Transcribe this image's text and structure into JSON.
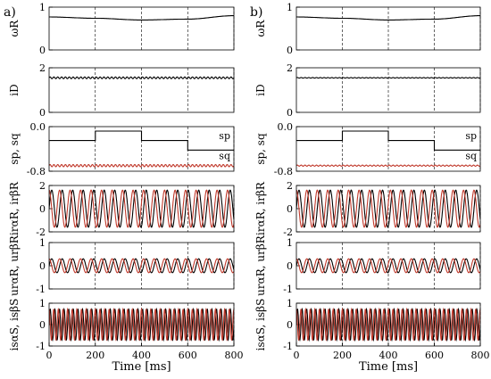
{
  "figure": {
    "panel_labels": [
      "a)",
      "b)"
    ],
    "xlabel": "Time [ms]",
    "x_ticks": [
      "0",
      "200",
      "400",
      "600",
      "800"
    ]
  },
  "colors": {
    "black": "#000000",
    "red": "#c0392b"
  },
  "chart_data": [
    {
      "type": "line",
      "panel": "a)",
      "x_range": [
        0,
        800
      ],
      "vlines": [
        200,
        400,
        600,
        800
      ],
      "rows": [
        {
          "ylabel": "ωR",
          "ylim": [
            0,
            1
          ],
          "yticks": [
            "0",
            "1"
          ],
          "series": [
            {
              "color": "#000000",
              "shape": "smooth",
              "points": [
                [
                  0,
                  0.77
                ],
                [
                  200,
                  0.74
                ],
                [
                  400,
                  0.7
                ],
                [
                  600,
                  0.72
                ],
                [
                  800,
                  0.8
                ]
              ]
            }
          ]
        },
        {
          "ylabel": "iD",
          "ylim": [
            0,
            2
          ],
          "yticks": [
            "0",
            "2"
          ],
          "series": [
            {
              "color": "#000000",
              "shape": "ripple",
              "level": 1.55,
              "amp": 0.04,
              "freq_hz": 60
            }
          ]
        },
        {
          "ylabel": "sp, sq",
          "ylim": [
            -0.8,
            0
          ],
          "yticks": [
            "-0.8",
            "0.0"
          ],
          "annotations": [
            {
              "text": "sp",
              "x": 760,
              "y": -0.22
            },
            {
              "text": "sq",
              "x": 760,
              "y": -0.58
            }
          ],
          "series": [
            {
              "color": "#000000",
              "shape": "steps",
              "steps": [
                [
                  0,
                  -0.25
                ],
                [
                  200,
                  -0.08
                ],
                [
                  400,
                  -0.25
                ],
                [
                  600,
                  -0.42
                ],
                [
                  800,
                  -0.42
                ]
              ]
            },
            {
              "color": "#c0392b",
              "shape": "ripple",
              "level": -0.7,
              "amp": 0.02,
              "freq_hz": 60
            }
          ]
        },
        {
          "ylabel": "irαR, irβR",
          "ylim": [
            -2,
            2
          ],
          "yticks": [
            "-2",
            "0",
            "2"
          ],
          "series": [
            {
              "color": "#000000",
              "shape": "sine",
              "amp": 1.6,
              "freq_hz": 22,
              "phase": 0
            },
            {
              "color": "#c0392b",
              "shape": "sine",
              "amp": 1.6,
              "freq_hz": 22,
              "phase": 1.571
            }
          ]
        },
        {
          "ylabel": "urαR, urβR",
          "ylim": [
            -1,
            1
          ],
          "yticks": [
            "-1",
            "0",
            "1"
          ],
          "series": [
            {
              "color": "#000000",
              "shape": "sine",
              "amp": 0.3,
              "freq_hz": 22,
              "phase": 0
            },
            {
              "color": "#c0392b",
              "shape": "sine",
              "amp": 0.3,
              "freq_hz": 22,
              "phase": 1.571
            }
          ]
        },
        {
          "ylabel": "isαS, isβS",
          "ylim": [
            -1,
            1
          ],
          "yticks": [
            "-1",
            "0",
            "1"
          ],
          "series": [
            {
              "color": "#000000",
              "shape": "sine",
              "amp": 0.72,
              "freq_hz": 50,
              "phase": 0
            },
            {
              "color": "#c0392b",
              "shape": "sine",
              "amp": 0.72,
              "freq_hz": 50,
              "phase": 1.571
            }
          ]
        }
      ]
    },
    {
      "type": "line",
      "panel": "b)",
      "x_range": [
        0,
        800
      ],
      "vlines": [
        200,
        400,
        600,
        800
      ],
      "rows": [
        {
          "ylabel": "ωR",
          "ylim": [
            0,
            1
          ],
          "yticks": [
            "0",
            "1"
          ],
          "series": [
            {
              "color": "#000000",
              "shape": "smooth",
              "points": [
                [
                  0,
                  0.77
                ],
                [
                  200,
                  0.74
                ],
                [
                  400,
                  0.7
                ],
                [
                  600,
                  0.72
                ],
                [
                  800,
                  0.8
                ]
              ]
            }
          ]
        },
        {
          "ylabel": "iD",
          "ylim": [
            0,
            2
          ],
          "yticks": [
            "0",
            "2"
          ],
          "series": [
            {
              "color": "#000000",
              "shape": "ripple",
              "level": 1.55,
              "amp": 0.015,
              "freq_hz": 60
            }
          ]
        },
        {
          "ylabel": "sp, sq",
          "ylim": [
            -0.8,
            0
          ],
          "yticks": [
            "-0.8",
            "0.0"
          ],
          "annotations": [
            {
              "text": "sp",
              "x": 760,
              "y": -0.22
            },
            {
              "text": "sq",
              "x": 760,
              "y": -0.58
            }
          ],
          "series": [
            {
              "color": "#000000",
              "shape": "steps",
              "steps": [
                [
                  0,
                  -0.25
                ],
                [
                  200,
                  -0.08
                ],
                [
                  400,
                  -0.25
                ],
                [
                  600,
                  -0.42
                ],
                [
                  800,
                  -0.42
                ]
              ]
            },
            {
              "color": "#c0392b",
              "shape": "ripple",
              "level": -0.7,
              "amp": 0.01,
              "freq_hz": 60
            }
          ]
        },
        {
          "ylabel": "irαR, irβR",
          "ylim": [
            -2,
            2
          ],
          "yticks": [
            "-2",
            "0",
            "2"
          ],
          "series": [
            {
              "color": "#000000",
              "shape": "sine",
              "amp": 1.6,
              "freq_hz": 22,
              "phase": 0
            },
            {
              "color": "#c0392b",
              "shape": "sine",
              "amp": 1.6,
              "freq_hz": 22,
              "phase": 1.571
            }
          ]
        },
        {
          "ylabel": "urαR, urβR",
          "ylim": [
            -1,
            1
          ],
          "yticks": [
            "-1",
            "0",
            "1"
          ],
          "series": [
            {
              "color": "#000000",
              "shape": "sine",
              "amp": 0.3,
              "freq_hz": 22,
              "phase": 0
            },
            {
              "color": "#c0392b",
              "shape": "sine",
              "amp": 0.3,
              "freq_hz": 22,
              "phase": 1.571
            }
          ]
        },
        {
          "ylabel": "isαS, isβS",
          "ylim": [
            -1,
            1
          ],
          "yticks": [
            "-1",
            "0",
            "1"
          ],
          "series": [
            {
              "color": "#000000",
              "shape": "sine",
              "amp": 0.72,
              "freq_hz": 50,
              "phase": 0
            },
            {
              "color": "#c0392b",
              "shape": "sine",
              "amp": 0.72,
              "freq_hz": 50,
              "phase": 1.571
            }
          ]
        }
      ]
    }
  ]
}
